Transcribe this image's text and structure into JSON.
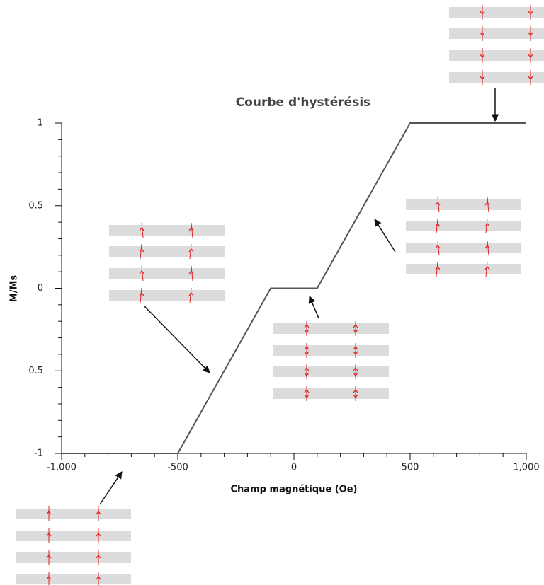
{
  "chart_data": {
    "type": "line",
    "title": "Courbe d'hystérésis",
    "x_label": "Champ magnétique (Oe)",
    "y_label": "M/Ms",
    "x": [
      -1000,
      -500,
      -100,
      100,
      500,
      1000
    ],
    "values": [
      -1,
      -1,
      0,
      0,
      1,
      1
    ],
    "color": "#555555",
    "xlim": [
      -1000,
      1000
    ],
    "xticks": [
      {
        "value": -1000,
        "label": "-1,000"
      },
      -500,
      0,
      500,
      {
        "value": 1000,
        "label": "1,000"
      }
    ],
    "ylim": [
      -1,
      1
    ],
    "yticks": [
      -1,
      -0.5,
      0,
      0.5,
      1
    ]
  }
}
